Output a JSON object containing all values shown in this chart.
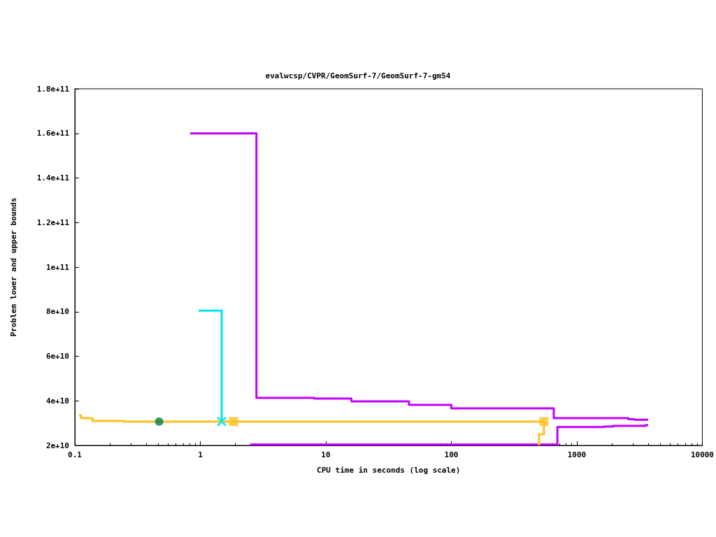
{
  "chart_data": {
    "type": "step",
    "title": "evalwcsp/CVPR/GeomSurf-7/GeomSurf-7-gm54",
    "xlabel": "CPU time in seconds (log scale)",
    "ylabel": "Problem lower and upper bounds",
    "log": "x",
    "grid": false,
    "xlim": [
      0.1,
      10000
    ],
    "xticks": [
      0.1,
      1,
      10,
      100,
      1000,
      10000
    ],
    "ylim": [
      20000000000,
      180000000000
    ],
    "yticks": [
      {
        "value": 20000000000,
        "label": "2e+10"
      },
      {
        "value": 40000000000,
        "label": "4e+10"
      },
      {
        "value": 60000000000,
        "label": "6e+10"
      },
      {
        "value": 80000000000,
        "label": "8e+10"
      },
      {
        "value": 100000000000,
        "label": "1e+11"
      },
      {
        "value": 120000000000,
        "label": "1.2e+11"
      },
      {
        "value": 140000000000,
        "label": "1.4e+11"
      },
      {
        "value": 160000000000,
        "label": "1.6e+11"
      },
      {
        "value": 180000000000,
        "label": "1.8e+11"
      }
    ],
    "series": [
      {
        "color": "#c000ff",
        "marker": "none",
        "x": [
          0.83,
          2.8,
          8.1,
          16,
          46,
          100,
          655,
          2580,
          2860,
          3700
        ],
        "values": [
          160000000000,
          41300000000,
          41000000000,
          39800000000,
          38200000000,
          36600000000,
          32200000000,
          31800000000,
          31500000000,
          31500000000
        ]
      },
      {
        "color": "#c000ff",
        "marker": "none",
        "x": [
          2.5,
          700,
          1650,
          1950,
          3520,
          3700
        ],
        "values": [
          20400000000,
          28200000000,
          28500000000,
          28800000000,
          29100000000,
          29100000000
        ]
      },
      {
        "color": "#00e5ee",
        "marker": "none",
        "x": [
          0.97,
          1.48
        ],
        "values": [
          80500000000,
          30700000000
        ]
      },
      {
        "type": "scatter",
        "color": "#00e5ee",
        "marker": "cross",
        "x": [
          1.48
        ],
        "values": [
          30700000000
        ]
      },
      {
        "color": "#ffc020",
        "marker": "none",
        "x": [
          0.108,
          0.112,
          0.138,
          0.245,
          547
        ],
        "values": [
          33500000000,
          32200000000,
          31000000000,
          30700000000,
          30700000000
        ]
      },
      {
        "color": "#ffc020",
        "marker": "none",
        "x": [
          500,
          500,
          547
        ],
        "values": [
          20000000000,
          25000000000,
          30700000000
        ]
      },
      {
        "type": "scatter",
        "color": "#ffc020",
        "marker": "square",
        "x": [
          1.84,
          547
        ],
        "values": [
          30700000000,
          30700000000
        ]
      },
      {
        "type": "scatter",
        "color": "#008040",
        "marker": "circle",
        "x": [
          0.47
        ],
        "values": [
          30700000000
        ]
      }
    ]
  }
}
